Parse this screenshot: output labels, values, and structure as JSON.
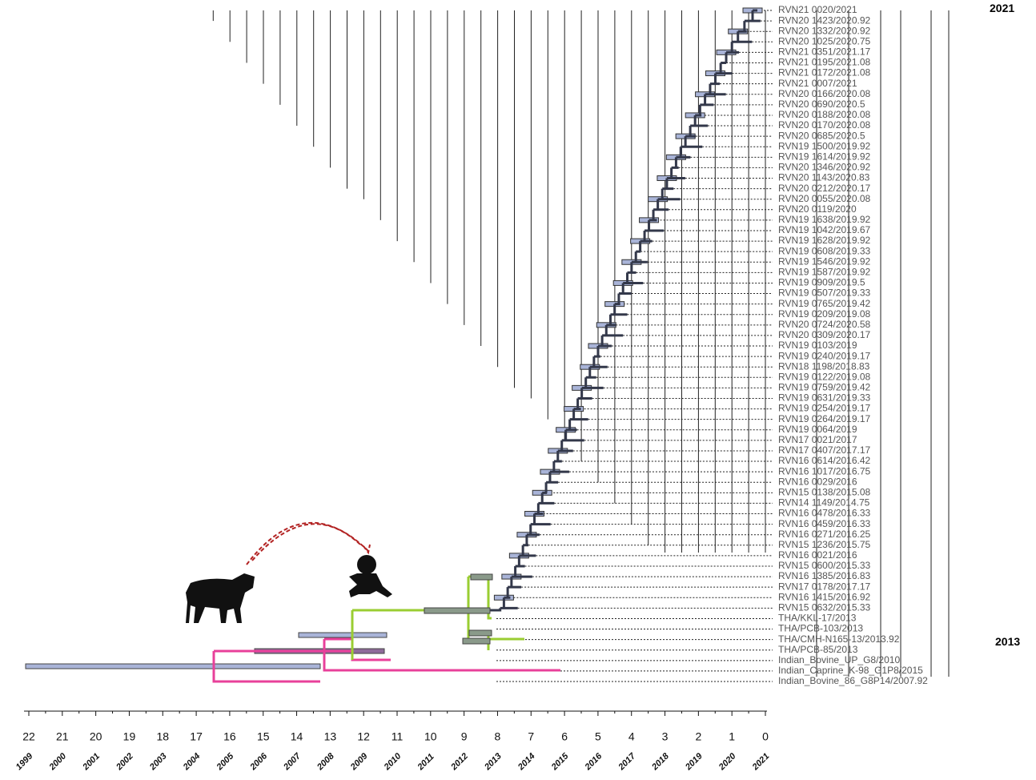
{
  "tree": {
    "tips": [
      "RVN21 0020/2021",
      "RVN20 1423/2020.92",
      "RVN20 1332/2020.92",
      "RVN20 1025/2020.75",
      "RVN21 0351/2021.17",
      "RVN21 0195/2021.08",
      "RVN21 0172/2021.08",
      "RVN21 0007/2021",
      "RVN20 0166/2020.08",
      "RVN20 0690/2020.5",
      "RVN20 0188/2020.08",
      "RVN20 0170/2020.08",
      "RVN20 0685/2020.5",
      "RVN19 1500/2019.92",
      "RVN19 1614/2019.92",
      "RVN20 1346/2020.92",
      "RVN20 1143/2020.83",
      "RVN20 0212/2020.17",
      "RVN20 0055/2020.08",
      "RVN20 0119/2020",
      "RVN19 1638/2019.92",
      "RVN19 1042/2019.67",
      "RVN19 1628/2019.92",
      "RVN19 0608/2019.33",
      "RVN19 1546/2019.92",
      "RVN19 1587/2019.92",
      "RVN19 0909/2019.5",
      "RVN19 0507/2019.33",
      "RVN19 0765/2019.42",
      "RVN19 0209/2019.08",
      "RVN20 0724/2020.58",
      "RVN20 0309/2020.17",
      "RVN19 0103/2019",
      "RVN19 0240/2019.17",
      "RVN18 1198/2018.83",
      "RVN19 0122/2019.08",
      "RVN19 0759/2019.42",
      "RVN19 0631/2019.33",
      "RVN19 0254/2019.17",
      "RVN19 0264/2019.17",
      "RVN19 0064/2019",
      "RVN17 0021/2017",
      "RVN17 0407/2017.17",
      "RVN16 0614/2016.42",
      "RVN16 1017/2016.75",
      "RVN16 0029/2016",
      "RVN15 0138/2015.08",
      "RVN14 1149/2014.75",
      "RVN16 0478/2016.33",
      "RVN16 0459/2016.33",
      "RVN16 0271/2016.25",
      "RVN15 1236/2015.75",
      "RVN16 0021/2016",
      "RVN15 0600/2015.33",
      "RVN16 1385/2016.83",
      "RVN17 0178/2017.17",
      "RVN16 1415/2016.92",
      "RVN15 0632/2015.33",
      "THA/KKL-17/2013",
      "THA/PCB-103/2013",
      "THA/CMH-N165-13/2013.92",
      "THA/PCB-85/2013",
      "Indian_Bovine_UP_G8/2010",
      "Indian_Caprine_K-98_G1P8/2015",
      "Indian_Bovine_86_G8P14/2007.92"
    ],
    "period_labels": [
      "2021",
      "2013"
    ],
    "axis_years_before": [
      22,
      21,
      20,
      19,
      18,
      17,
      16,
      15,
      14,
      13,
      12,
      11,
      10,
      9,
      8,
      7,
      6,
      5,
      4,
      3,
      2,
      1,
      0
    ],
    "axis_years": [
      1999,
      2000,
      2001,
      2002,
      2003,
      2004,
      2005,
      2006,
      2007,
      2008,
      2009,
      2010,
      2011,
      2012,
      2013,
      2014,
      2015,
      2016,
      2017,
      2018,
      2019,
      2020,
      2021
    ]
  }
}
